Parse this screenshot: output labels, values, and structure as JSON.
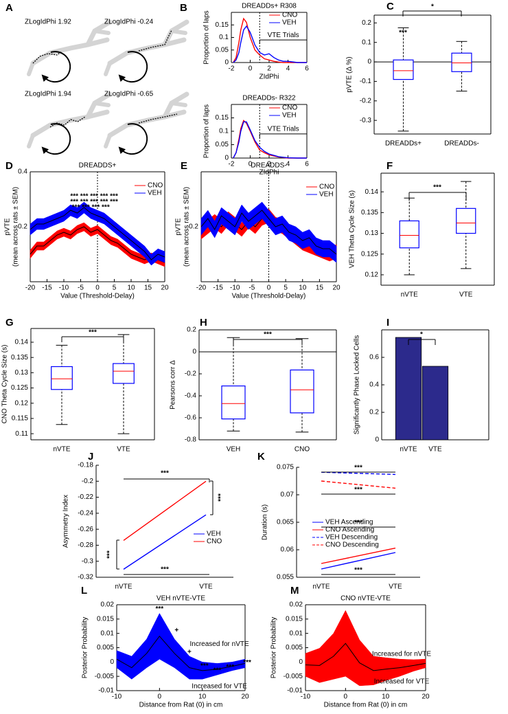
{
  "panel_a": {
    "label": "A",
    "trials": [
      "ZLogIdPhi 1.92",
      "ZLogIdPhi -0.24",
      "ZLogIdPhi 1.94",
      "ZLogIdPhi -0.65"
    ]
  },
  "chart_data": [
    {
      "type": "line",
      "label": "B",
      "title": "DREADDs+ R308",
      "ylabel": "Proportion of laps",
      "xlabel": "ZIdPhi",
      "x": [
        -1.8,
        -1.5,
        -1.2,
        -1,
        -0.7,
        -0.4,
        0,
        0.5,
        1,
        1.5,
        2,
        2.5,
        3,
        3.5,
        4,
        5,
        6
      ],
      "series": [
        {
          "name": "CNO",
          "color": "#ff0000",
          "values": [
            0,
            0.02,
            0.08,
            0.13,
            0.175,
            0.16,
            0.1,
            0.05,
            0.03,
            0.015,
            0.01,
            0.005,
            0.002,
            0,
            0,
            0,
            0
          ]
        },
        {
          "name": "VEH",
          "color": "#0000ff",
          "values": [
            0,
            0.01,
            0.04,
            0.08,
            0.13,
            0.145,
            0.12,
            0.07,
            0.04,
            0.03,
            0.035,
            0.02,
            0.01,
            0.005,
            0.005,
            0,
            0
          ]
        }
      ],
      "xlim": [
        -2,
        6
      ],
      "xticks": [
        -2,
        0,
        2,
        4,
        6
      ],
      "ylim": [
        0,
        0.2
      ],
      "yticks": [
        0,
        0.05,
        0.1,
        0.15
      ],
      "vline": 1,
      "annotation": "VTE Trials"
    },
    {
      "type": "line",
      "title": "DREADDs- R322",
      "ylabel": "Proportion of laps",
      "xlabel": "ZIdPhi",
      "x": [
        -1.8,
        -1.5,
        -1.2,
        -1,
        -0.7,
        -0.4,
        0,
        0.5,
        1,
        1.5,
        2,
        2.5,
        3,
        3.5,
        4,
        5,
        6
      ],
      "series": [
        {
          "name": "CNO",
          "color": "#ff0000",
          "values": [
            0,
            0.02,
            0.07,
            0.11,
            0.14,
            0.13,
            0.1,
            0.06,
            0.03,
            0.02,
            0.012,
            0.008,
            0.004,
            0.002,
            0,
            0,
            0
          ]
        },
        {
          "name": "VEH",
          "color": "#0000ff",
          "values": [
            0,
            0.02,
            0.06,
            0.1,
            0.135,
            0.135,
            0.105,
            0.065,
            0.04,
            0.025,
            0.015,
            0.01,
            0.005,
            0.003,
            0.001,
            0,
            0
          ]
        }
      ],
      "xlim": [
        -2,
        6
      ],
      "xticks": [
        -2,
        0,
        2,
        4,
        6
      ],
      "ylim": [
        0,
        0.2
      ],
      "yticks": [
        0,
        0.05,
        0.1,
        0.15
      ],
      "vline": 1,
      "annotation": "VTE Trials"
    },
    {
      "type": "box",
      "label": "C",
      "ylabel": "pVTE (Δ %)",
      "categories": [
        "DREADDs+",
        "DREADDs-"
      ],
      "boxes": [
        {
          "min": -0.355,
          "q1": -0.09,
          "median": -0.045,
          "q3": 0.01,
          "max": 0.175
        },
        {
          "min": -0.15,
          "q1": -0.05,
          "median": -0.005,
          "q3": 0.045,
          "max": 0.105
        }
      ],
      "color": "#0000ff",
      "median_color": "#ff0000",
      "ylim": [
        -0.37,
        0.24
      ],
      "yticks": [
        -0.3,
        -0.2,
        -0.1,
        0,
        0.1,
        0.2
      ],
      "zero_line": true,
      "significance": [
        "***",
        "*"
      ]
    },
    {
      "type": "band",
      "label": "D",
      "title": "DREADDS+",
      "ylabel": [
        "pVTE",
        "(mean across rats  ± SEM)"
      ],
      "xlabel": "Value (Threshold-Delay)",
      "x": [
        -20,
        -18,
        -16,
        -14,
        -12,
        -10,
        -8,
        -6,
        -4,
        -2,
        0,
        2,
        4,
        6,
        8,
        10,
        12,
        14,
        16,
        18,
        20
      ],
      "series": [
        {
          "name": "CNO",
          "color": "#ff0000",
          "values": [
            0.1,
            0.13,
            0.13,
            0.15,
            0.17,
            0.18,
            0.17,
            0.19,
            0.2,
            0.18,
            0.19,
            0.17,
            0.15,
            0.14,
            0.12,
            0.1,
            0.09,
            0.08,
            0.09,
            0.08,
            0.07
          ],
          "errors": [
            0.015,
            0.015,
            0.015,
            0.015,
            0.015,
            0.015,
            0.015,
            0.015,
            0.015,
            0.015,
            0.015,
            0.015,
            0.015,
            0.015,
            0.015,
            0.015,
            0.015,
            0.015,
            0.015,
            0.015,
            0.015
          ]
        },
        {
          "name": "VEH",
          "color": "#0000ff",
          "values": [
            0.19,
            0.21,
            0.21,
            0.22,
            0.23,
            0.24,
            0.26,
            0.25,
            0.27,
            0.25,
            0.24,
            0.23,
            0.21,
            0.19,
            0.17,
            0.15,
            0.13,
            0.11,
            0.08,
            0.1,
            0.09
          ],
          "errors": [
            0.02,
            0.02,
            0.02,
            0.02,
            0.02,
            0.02,
            0.02,
            0.02,
            0.02,
            0.02,
            0.02,
            0.02,
            0.02,
            0.02,
            0.02,
            0.02,
            0.02,
            0.02,
            0.02,
            0.02,
            0.02
          ]
        }
      ],
      "line_color": "#000000",
      "xlim": [
        -20,
        20
      ],
      "xticks": [
        -20,
        -15,
        -10,
        -5,
        0,
        5,
        10,
        15,
        20
      ],
      "ylim": [
        0,
        0.4
      ],
      "yticks": [
        0.2,
        0.4
      ],
      "vline": 0,
      "significance": [
        "*** *** *** *** ***",
        "*** *** *** *** ***",
        "*** *** *** ***"
      ]
    },
    {
      "type": "band",
      "label": "E",
      "title": "DREADDS-",
      "ylabel": [
        "pVTE",
        "(mean across rats  ± SEM)"
      ],
      "xlabel": "Value (Threshold-Delay)",
      "x": [
        -20,
        -18,
        -16,
        -14,
        -12,
        -10,
        -8,
        -6,
        -4,
        -2,
        0,
        2,
        4,
        6,
        8,
        10,
        12,
        14,
        16,
        18,
        20
      ],
      "series": [
        {
          "name": "CNO",
          "color": "#ff0000",
          "values": [
            0.18,
            0.2,
            0.22,
            0.2,
            0.23,
            0.21,
            0.19,
            0.22,
            0.2,
            0.23,
            0.24,
            0.21,
            0.2,
            0.18,
            0.16,
            0.14,
            0.13,
            0.12,
            0.11,
            0.1,
            0.11
          ],
          "errors": [
            0.025,
            0.025,
            0.025,
            0.025,
            0.025,
            0.025,
            0.025,
            0.025,
            0.025,
            0.025,
            0.025,
            0.025,
            0.025,
            0.025,
            0.025,
            0.025,
            0.025,
            0.025,
            0.025,
            0.025,
            0.025
          ]
        },
        {
          "name": "VEH",
          "color": "#0000ff",
          "values": [
            0.2,
            0.23,
            0.19,
            0.24,
            0.22,
            0.2,
            0.25,
            0.22,
            0.24,
            0.26,
            0.23,
            0.2,
            0.21,
            0.18,
            0.17,
            0.15,
            0.16,
            0.13,
            0.12,
            0.12,
            0.1
          ],
          "errors": [
            0.03,
            0.03,
            0.03,
            0.03,
            0.03,
            0.03,
            0.03,
            0.03,
            0.03,
            0.03,
            0.03,
            0.03,
            0.03,
            0.03,
            0.03,
            0.03,
            0.03,
            0.03,
            0.03,
            0.03,
            0.03
          ]
        }
      ],
      "line_color": "#000000",
      "xlim": [
        -20,
        20
      ],
      "xticks": [
        -20,
        -15,
        -10,
        -5,
        0,
        5,
        10,
        15,
        20
      ],
      "ylim": [
        0,
        0.4
      ],
      "yticks": [
        0.2
      ],
      "vline": 0
    },
    {
      "type": "box",
      "label": "F",
      "ylabel": "VEH Theta Cycle Size (s)",
      "categories": [
        "nVTE",
        "VTE"
      ],
      "boxes": [
        {
          "min": 0.12,
          "q1": 0.1265,
          "median": 0.1295,
          "q3": 0.133,
          "max": 0.1385
        },
        {
          "min": 0.1215,
          "q1": 0.13,
          "median": 0.1325,
          "q3": 0.136,
          "max": 0.1425
        }
      ],
      "color": "#0000ff",
      "median_color": "#ff0000",
      "ylim": [
        0.1175,
        0.1445
      ],
      "yticks": [
        0.12,
        0.125,
        0.13,
        0.135,
        0.14
      ],
      "significance": [
        "***"
      ]
    },
    {
      "type": "box",
      "label": "G",
      "ylabel": "CNO Theta Cycle Size (s)",
      "categories": [
        "nVTE",
        "VTE"
      ],
      "boxes": [
        {
          "min": 0.113,
          "q1": 0.1245,
          "median": 0.128,
          "q3": 0.132,
          "max": 0.139
        },
        {
          "min": 0.11,
          "q1": 0.1265,
          "median": 0.1305,
          "q3": 0.133,
          "max": 0.1425
        }
      ],
      "color": "#0000ff",
      "median_color": "#ff0000",
      "ylim": [
        0.108,
        0.1445
      ],
      "yticks": [
        0.11,
        0.115,
        0.12,
        0.125,
        0.13,
        0.135,
        0.14
      ],
      "significance": [
        "***"
      ]
    },
    {
      "type": "box",
      "label": "H",
      "ylabel": "Pearsons corr Δ",
      "categories": [
        "VEH",
        "CNO"
      ],
      "boxes": [
        {
          "min": -0.72,
          "q1": -0.61,
          "median": -0.47,
          "q3": -0.31,
          "max": 0.13
        },
        {
          "min": -0.73,
          "q1": -0.555,
          "median": -0.345,
          "q3": -0.165,
          "max": 0.12
        }
      ],
      "color": "#0000ff",
      "median_color": "#ff0000",
      "ylim": [
        -0.8,
        0.2
      ],
      "yticks": [
        -0.8,
        -0.6,
        -0.4,
        -0.2,
        0,
        0.2
      ],
      "zero_line": true,
      "significance": [
        "***"
      ]
    },
    {
      "type": "bar",
      "label": "I",
      "ylabel": "Significantly Phase Locked Cells",
      "categories": [
        "nVTE",
        "VTE"
      ],
      "values": [
        0.745,
        0.535
      ],
      "color": "#2c2a8c",
      "ylim": [
        0,
        0.8
      ],
      "yticks": [
        0,
        0.2,
        0.4,
        0.6
      ],
      "significance": [
        "*"
      ]
    },
    {
      "type": "line",
      "label": "J",
      "ylabel": "Asymmetry Index",
      "categories": [
        "nVTE",
        "VTE"
      ],
      "series": [
        {
          "name": "VEH",
          "color": "#0000ff",
          "values": [
            -0.31,
            -0.242
          ]
        },
        {
          "name": "CNO",
          "color": "#ff0000",
          "values": [
            -0.274,
            -0.2
          ]
        }
      ],
      "ylim": [
        -0.32,
        -0.18
      ],
      "yticks": [
        -0.32,
        -0.3,
        -0.28,
        -0.26,
        -0.24,
        -0.22,
        -0.2,
        -0.18
      ],
      "significance": [
        "***",
        "***",
        "***",
        "***"
      ]
    },
    {
      "type": "line",
      "label": "K",
      "ylabel": "Duration (s)",
      "categories": [
        "nVTE",
        "VTE"
      ],
      "series": [
        {
          "name": "VEH Ascending",
          "color": "#0000ff",
          "dashed": false,
          "values": [
            0.0565,
            0.0595
          ]
        },
        {
          "name": "CNO Ascending",
          "color": "#ff0000",
          "dashed": false,
          "values": [
            0.0575,
            0.0603
          ]
        },
        {
          "name": "VEH Descending",
          "color": "#0000ff",
          "dashed": true,
          "values": [
            0.0741,
            0.0737
          ]
        },
        {
          "name": "CNO Descending",
          "color": "#ff0000",
          "dashed": true,
          "values": [
            0.0725,
            0.0712
          ]
        }
      ],
      "ylim": [
        0.055,
        0.075
      ],
      "yticks": [
        0.055,
        0.06,
        0.065,
        0.07,
        0.075
      ],
      "significance": [
        "***",
        "***",
        "***",
        "***"
      ]
    },
    {
      "type": "band",
      "label": "L",
      "title": "VEH nVTE-VTE",
      "ylabel": "Posterior Probability",
      "xlabel": "Distance from Rat (0) in cm",
      "x": [
        -10,
        -6.5,
        -3,
        0,
        3.5,
        7,
        10,
        13.5,
        17,
        20
      ],
      "series": [
        {
          "color": "#0000ff",
          "values": [
            0.001,
            -0.002,
            0.003,
            0.009,
            0.003,
            -0.002,
            -0.003,
            -0.0025,
            -0.0015,
            -0.0005
          ],
          "errors": [
            0.003,
            0.004,
            0.005,
            0.008,
            0.005,
            0.004,
            0.003,
            0.002,
            0.0015,
            0.0015
          ]
        }
      ],
      "line_color": "#000000",
      "xlim": [
        -10,
        20
      ],
      "xticks": [
        -10,
        0,
        10,
        20
      ],
      "ylim": [
        -0.01,
        0.02
      ],
      "yticks": [
        -0.01,
        -0.005,
        0,
        0.005,
        0.01,
        0.015,
        0.02
      ],
      "significance": [
        "***",
        "+",
        "+",
        "***",
        "***",
        "***",
        "***"
      ],
      "notes": [
        "Increased for nVTE",
        "Increased for VTE"
      ]
    },
    {
      "type": "band",
      "label": "M",
      "title": "CNO nVTE-VTE",
      "ylabel": "Posterior Probability",
      "xlabel": "Distance from Rat (0) in cm",
      "x": [
        -10,
        -6.5,
        -3,
        0,
        3.5,
        7,
        10,
        13.5,
        17,
        20
      ],
      "series": [
        {
          "color": "#ff0000",
          "values": [
            -0.001,
            -0.0012,
            0.002,
            0.0065,
            -0.0003,
            -0.003,
            -0.0025,
            -0.002,
            -0.0012,
            -0.0005
          ],
          "errors": [
            0.004,
            0.006,
            0.008,
            0.0115,
            0.008,
            0.005,
            0.004,
            0.003,
            0.002,
            0.0015
          ]
        }
      ],
      "line_color": "#000000",
      "xlim": [
        -10,
        20
      ],
      "xticks": [
        -10,
        0,
        10,
        20
      ],
      "ylim": [
        -0.01,
        0.02
      ],
      "yticks": [
        -0.01,
        -0.005,
        0,
        0.005,
        0.01,
        0.015,
        0.02
      ],
      "notes": [
        "Increased for nVTE",
        "Increased for VTE"
      ]
    }
  ]
}
